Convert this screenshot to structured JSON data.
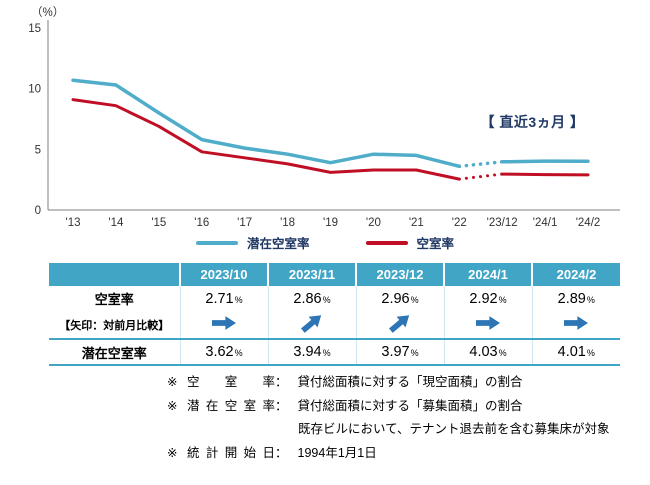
{
  "accent_colors": {
    "line_blue": "#4fadc9",
    "line_red": "#c00f24",
    "table_header_bg": "#41a5c6",
    "arrow_blue": "#2e75b6",
    "annotation_navy": "#1f3864",
    "axis_gray": "#7f7f7f"
  },
  "chart": {
    "unit_label": "（%）",
    "annotation": "【 直近3ヵ月 】"
  },
  "chart_data": {
    "type": "line",
    "x": [
      "'13",
      "'14",
      "'15",
      "'16",
      "'17",
      "'18",
      "'19",
      "'20",
      "'21",
      "'22",
      "'23/12",
      "'24/1",
      "'24/2"
    ],
    "series": [
      {
        "name": "潜在空室率",
        "color": "#4fadc9",
        "values": [
          10.7,
          10.3,
          8.0,
          5.8,
          5.1,
          4.6,
          3.9,
          4.6,
          4.5,
          3.6,
          3.97,
          4.03,
          4.01
        ]
      },
      {
        "name": "空室率",
        "color": "#c00f24",
        "values": [
          9.1,
          8.6,
          6.9,
          4.8,
          4.3,
          3.8,
          3.1,
          3.3,
          3.3,
          2.55,
          2.96,
          2.92,
          2.89
        ]
      }
    ],
    "ylim": [
      0,
      15
    ],
    "y_ticks": [
      0,
      5,
      10,
      15
    ],
    "dotted_segment": [
      9,
      10
    ],
    "grid": false,
    "legend_position": "bottom",
    "title": "",
    "xlabel": "",
    "ylabel": "（%）"
  },
  "table": {
    "header": [
      "",
      "2023/10",
      "2023/11",
      "2023/12",
      "2024/1",
      "2024/2"
    ],
    "unit": "%",
    "rows": {
      "vacancy": {
        "label": "空室率",
        "values": [
          "2.71",
          "2.86",
          "2.96",
          "2.92",
          "2.89"
        ]
      },
      "arrows": {
        "label": "【矢印：対前月比較】",
        "directions": [
          "right",
          "up",
          "up",
          "right",
          "right"
        ]
      },
      "potential": {
        "label": "潜在空室率",
        "values": [
          "3.62",
          "3.94",
          "3.97",
          "4.03",
          "4.01"
        ]
      }
    }
  },
  "footnotes": [
    {
      "marker": "※",
      "label": "空室率",
      "separator": "：",
      "body": "貸付総面積に対する「現空面積」の割合"
    },
    {
      "marker": "※",
      "label": "潜在空室率",
      "separator": "：",
      "body": "貸付総面積に対する「募集面積」の割合"
    },
    {
      "marker": null,
      "label": null,
      "separator": null,
      "body": "既存ビルにおいて、テナント退去前を含む募集床が対象"
    },
    {
      "marker": "※",
      "label": "統計開始日",
      "separator": "：",
      "body": "1994年1月1日"
    }
  ]
}
